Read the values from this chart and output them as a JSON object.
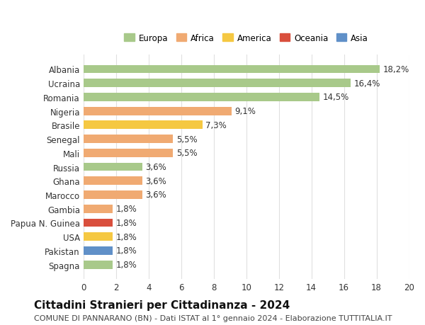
{
  "categories": [
    "Albania",
    "Ucraina",
    "Romania",
    "Nigeria",
    "Brasile",
    "Senegal",
    "Mali",
    "Russia",
    "Ghana",
    "Marocco",
    "Gambia",
    "Papua N. Guinea",
    "USA",
    "Pakistan",
    "Spagna"
  ],
  "values": [
    18.2,
    16.4,
    14.5,
    9.1,
    7.3,
    5.5,
    5.5,
    3.6,
    3.6,
    3.6,
    1.8,
    1.8,
    1.8,
    1.8,
    1.8
  ],
  "labels": [
    "18,2%",
    "16,4%",
    "14,5%",
    "9,1%",
    "7,3%",
    "5,5%",
    "5,5%",
    "3,6%",
    "3,6%",
    "3,6%",
    "1,8%",
    "1,8%",
    "1,8%",
    "1,8%",
    "1,8%"
  ],
  "colors": [
    "#a8c98a",
    "#a8c98a",
    "#a8c98a",
    "#f0aa72",
    "#f5c842",
    "#f0aa72",
    "#f0aa72",
    "#a8c98a",
    "#f0aa72",
    "#f0aa72",
    "#f0aa72",
    "#d94f3d",
    "#f5c842",
    "#6090c8",
    "#a8c98a"
  ],
  "continent_colors": {
    "Europa": "#a8c98a",
    "Africa": "#f0aa72",
    "America": "#f5c842",
    "Oceania": "#d94f3d",
    "Asia": "#6090c8"
  },
  "xlim": [
    0,
    20
  ],
  "xticks": [
    0,
    2,
    4,
    6,
    8,
    10,
    12,
    14,
    16,
    18,
    20
  ],
  "title": "Cittadini Stranieri per Cittadinanza - 2024",
  "subtitle": "COMUNE DI PANNARANO (BN) - Dati ISTAT al 1° gennaio 2024 - Elaborazione TUTTITALIA.IT",
  "bg_color": "#ffffff",
  "grid_color": "#e0e0e0",
  "bar_height": 0.6,
  "label_fontsize": 8.5,
  "tick_fontsize": 8.5,
  "title_fontsize": 11,
  "subtitle_fontsize": 8
}
